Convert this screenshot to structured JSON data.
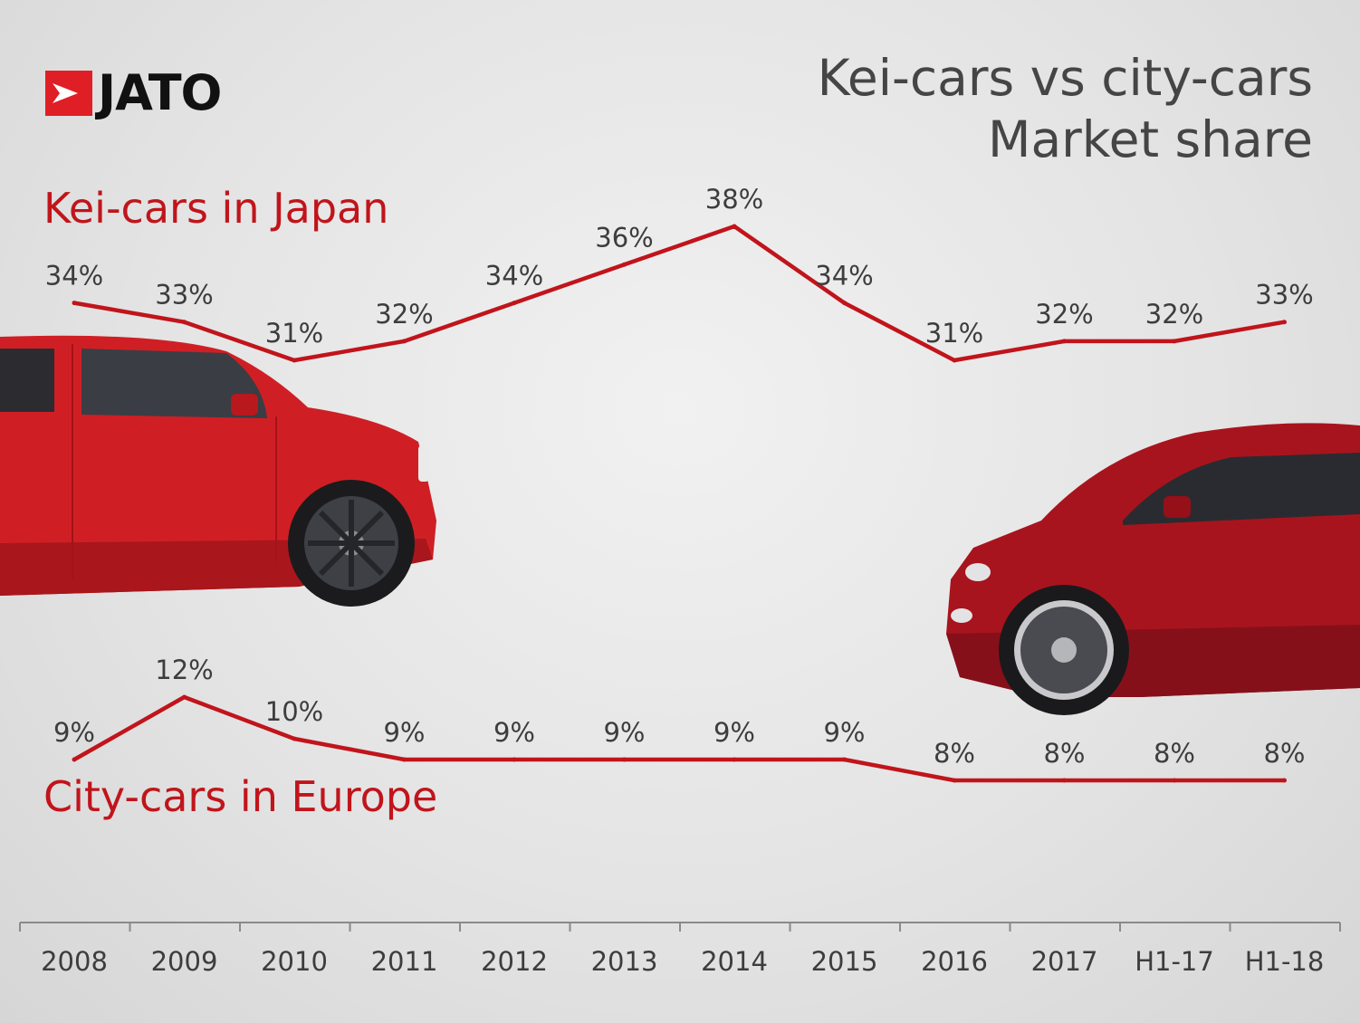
{
  "logo": {
    "text": "JATO",
    "icon": "arrow-flag-icon",
    "color": "#e01e26"
  },
  "title": {
    "line1": "Kei-cars vs city-cars",
    "line2": "Market share"
  },
  "colors": {
    "line": "#c1141b",
    "label": "#3d3d3d",
    "series_label": "#c0151b",
    "axis": "#8a8a8a"
  },
  "chart_data": {
    "type": "line",
    "categories": [
      "2008",
      "2009",
      "2010",
      "2011",
      "2012",
      "2013",
      "2014",
      "2015",
      "2016",
      "2017",
      "H1-17",
      "H1-18"
    ],
    "series": [
      {
        "name": "Kei-cars in Japan",
        "values": [
          34,
          33,
          31,
          32,
          34,
          36,
          38,
          34,
          31,
          32,
          32,
          33
        ],
        "labels": [
          "34%",
          "33%",
          "31%",
          "32%",
          "34%",
          "36%",
          "38%",
          "34%",
          "31%",
          "32%",
          "32%",
          "33%"
        ]
      },
      {
        "name": "City-cars in Europe",
        "values": [
          9,
          12,
          10,
          9,
          9,
          9,
          9,
          9,
          8,
          8,
          8,
          8
        ],
        "labels": [
          "9%",
          "12%",
          "10%",
          "9%",
          "9%",
          "9%",
          "9%",
          "9%",
          "8%",
          "8%",
          "8%",
          "8%"
        ]
      }
    ],
    "unit": "%",
    "grid": false,
    "legend": "none"
  },
  "decorations": [
    "red-kei-car-icon",
    "red-city-car-icon"
  ]
}
